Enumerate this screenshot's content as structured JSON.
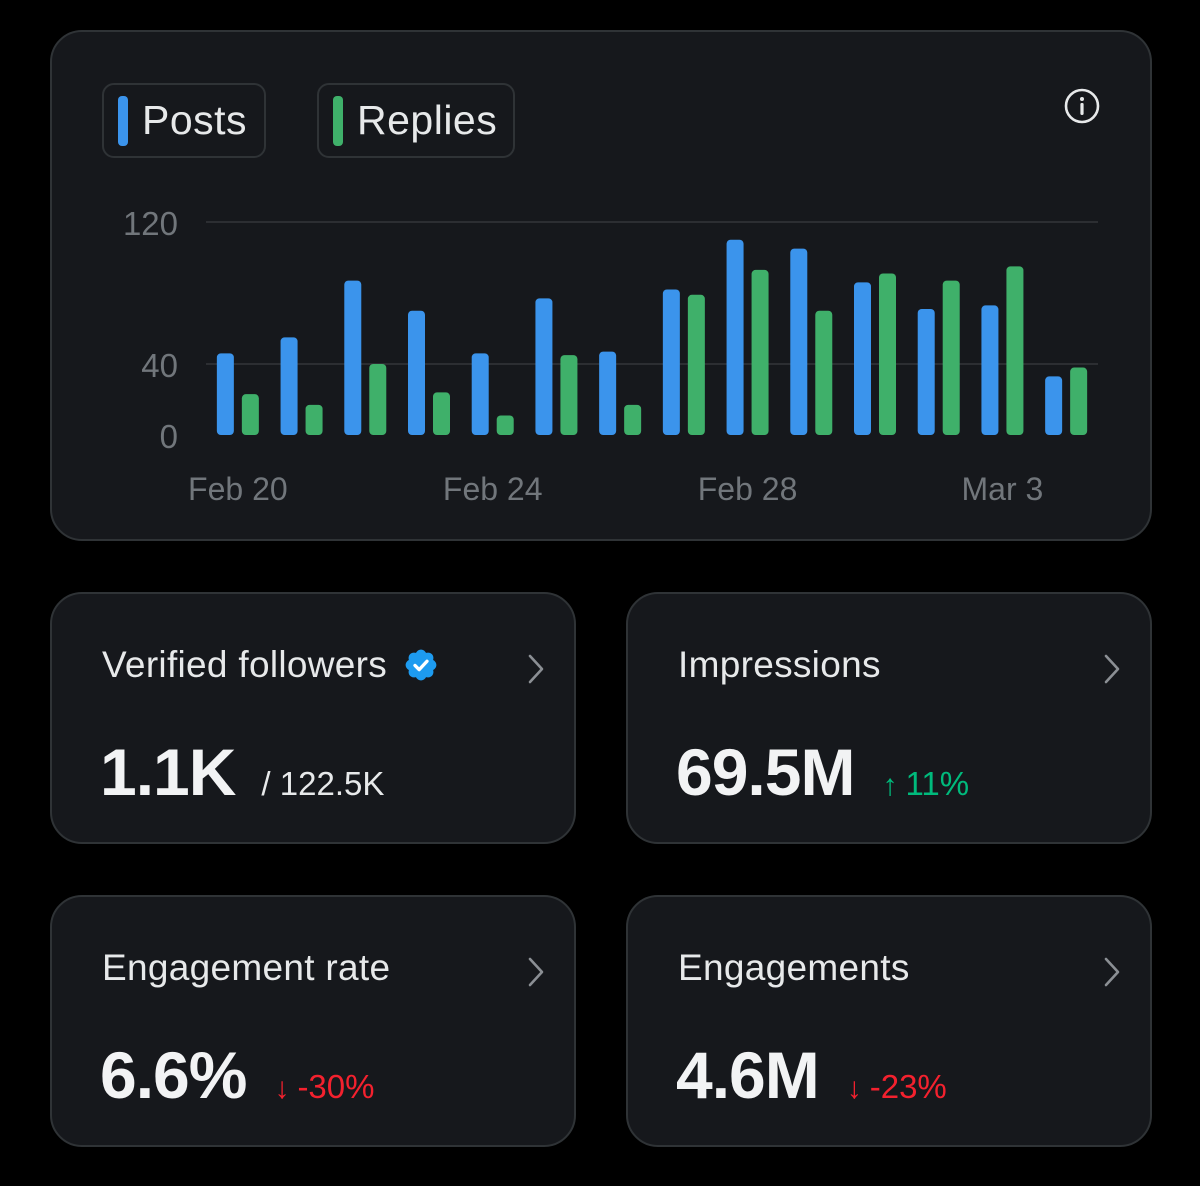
{
  "chart": {
    "legend": [
      {
        "label": "Posts",
        "color": "#3b94ec"
      },
      {
        "label": "Replies",
        "color": "#3fb06a"
      }
    ],
    "info_icon": "info-icon"
  },
  "chart_data": {
    "type": "bar",
    "x": [
      "Feb 20",
      "Feb 21",
      "Feb 22",
      "Feb 23",
      "Feb 24",
      "Feb 25",
      "Feb 26",
      "Feb 27",
      "Feb 28",
      "Feb 29",
      "Mar 1",
      "Mar 2",
      "Mar 3",
      "Mar 4"
    ],
    "series": [
      {
        "name": "Posts",
        "color": "#3b94ec",
        "values": [
          46,
          55,
          87,
          70,
          46,
          77,
          47,
          82,
          110,
          105,
          86,
          71,
          73,
          33
        ]
      },
      {
        "name": "Replies",
        "color": "#3fb06a",
        "values": [
          23,
          17,
          40,
          24,
          11,
          45,
          17,
          79,
          93,
          70,
          91,
          87,
          95,
          38
        ]
      }
    ],
    "y_ticks": [
      0,
      40,
      120
    ],
    "x_tick_labels": [
      "Feb 20",
      "Feb 24",
      "Feb 28",
      "Mar 3"
    ],
    "ylim": [
      0,
      120
    ],
    "grid": true,
    "legend_position": "top-left"
  },
  "stats": {
    "verified_followers": {
      "title": "Verified followers",
      "value": "1.1K",
      "sub": "/ 122.5K",
      "badge_icon": "verified-badge-icon"
    },
    "impressions": {
      "title": "Impressions",
      "value": "69.5M",
      "delta_arrow": "↑",
      "delta": "11%",
      "delta_color": "#00ba7c"
    },
    "engagement_rate": {
      "title": "Engagement rate",
      "value": "6.6%",
      "delta_arrow": "↓",
      "delta": "-30%",
      "delta_color": "#f4212e"
    },
    "engagements": {
      "title": "Engagements",
      "value": "4.6M",
      "delta_arrow": "↓",
      "delta": "-23%",
      "delta_color": "#f4212e"
    }
  }
}
